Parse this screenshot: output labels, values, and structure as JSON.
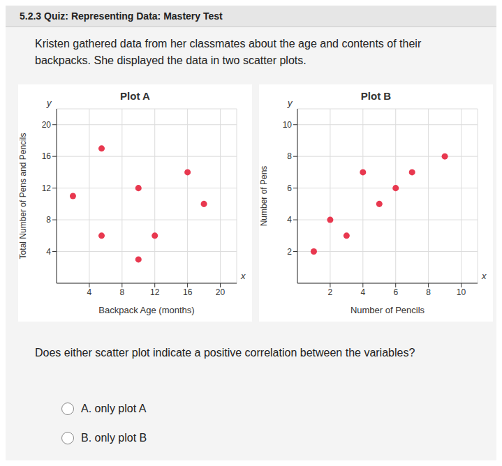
{
  "page": {
    "header": "5.2.3 Quiz: Representing Data: Mastery Test",
    "intro": "Kristen gathered data from her classmates about the age and contents of their backpacks. She displayed the data in two scatter plots.",
    "question": "Does either scatter plot indicate a positive correlation between the variables?",
    "options": [
      "A. only plot A",
      "B. only plot B"
    ]
  },
  "chart_data": [
    {
      "type": "scatter",
      "title": "Plot A",
      "x_label": "Backpack Age (months)",
      "y_label": "Total Number of Pens and Pencils",
      "x_symbol": "x",
      "y_symbol": "y",
      "x": [
        5.5,
        16,
        10,
        2,
        18,
        5.5,
        12,
        10
      ],
      "values": [
        17,
        14,
        12,
        11,
        10,
        6,
        6,
        3
      ],
      "color": "#e8384f",
      "xlim": [
        0,
        22
      ],
      "ylim": [
        0,
        22
      ],
      "xticks": [
        4,
        8,
        12,
        16,
        20
      ],
      "yticks": [
        4,
        8,
        12,
        16,
        20
      ],
      "grid": true
    },
    {
      "type": "scatter",
      "title": "Plot B",
      "x_label": "Number of Pencils",
      "y_label": "Number of Pens",
      "x_symbol": "x",
      "y_symbol": "y",
      "x": [
        1,
        2,
        3,
        5,
        6,
        4,
        7,
        9
      ],
      "values": [
        2,
        4,
        3,
        5,
        6,
        7,
        7,
        8
      ],
      "color": "#e8384f",
      "xlim": [
        0,
        11
      ],
      "ylim": [
        0,
        11
      ],
      "xticks": [
        2,
        4,
        6,
        8,
        10
      ],
      "yticks": [
        2,
        4,
        6,
        8,
        10
      ],
      "grid": true
    }
  ]
}
